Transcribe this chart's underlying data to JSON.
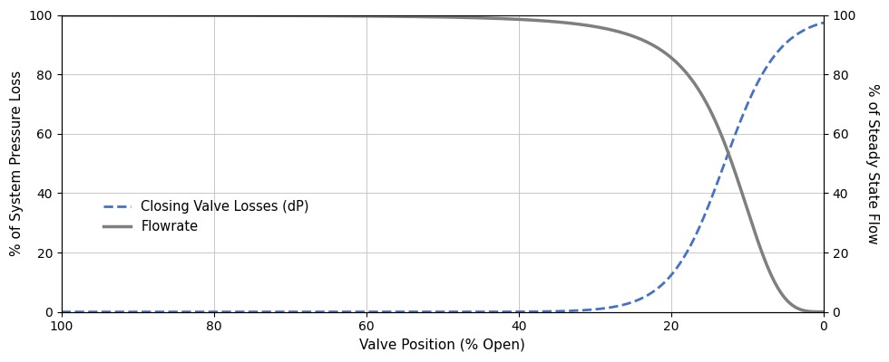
{
  "title": "",
  "xlabel": "Valve Position (% Open)",
  "ylabel_left": "% of System Pressure Loss",
  "ylabel_right": "% of Steady State Flow",
  "legend_valve": "Closing Valve Losses (dP)",
  "legend_flow": "Flowrate",
  "x_ticks": [
    100,
    80,
    60,
    40,
    20,
    0
  ],
  "ylim": [
    0,
    100
  ],
  "xlim": [
    100,
    0
  ],
  "valve_color": "#4472C4",
  "flow_color": "#7F7F7F",
  "background": "#ffffff",
  "grid_color": "#c8c8c8",
  "n_hill_flow": 3.5,
  "x50_flow": 12,
  "k_valve": 0.28,
  "x0_valve": 13
}
